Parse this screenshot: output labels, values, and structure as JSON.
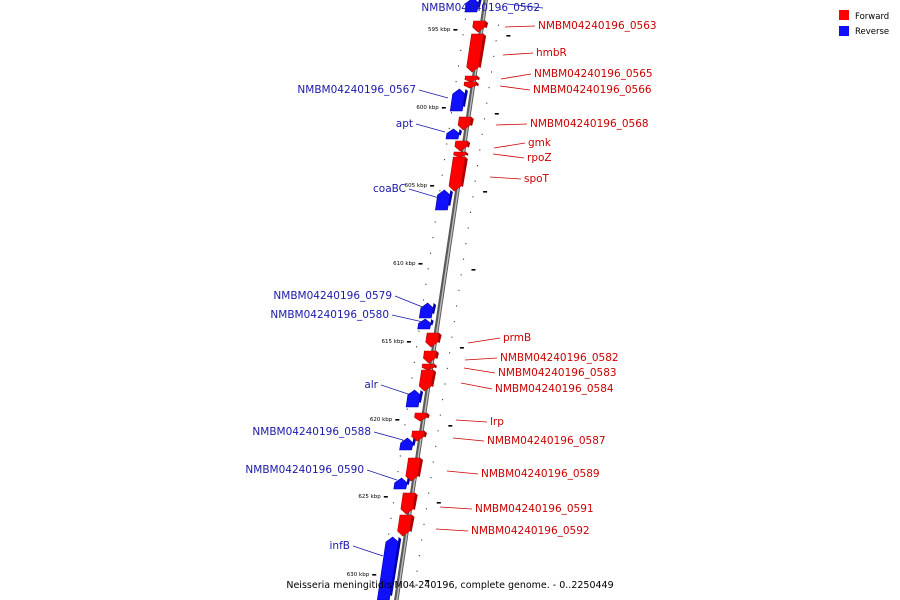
{
  "colors": {
    "forward": "#ff0000",
    "forward_dark": "#b00000",
    "reverse": "#1010ff",
    "reverse_dark": "#0000a8",
    "forward_label": "#cc0000",
    "reverse_label": "#1a1aaa",
    "backbone": "#8a8a8a"
  },
  "legend": {
    "forward": "Forward",
    "reverse": "Reverse"
  },
  "caption": "Neisseria meningitidis M04-240196, complete genome. - 0..2250449",
  "scale": {
    "ticks": [
      "595 kbp",
      "600 kbp",
      "605 kbp",
      "610 kbp",
      "615 kbp",
      "620 kbp",
      "625 kbp",
      "630 kbp"
    ]
  },
  "genes": [
    {
      "label": "NMBM04240196_0562",
      "strand": "reverse"
    },
    {
      "label": "NMBM04240196_0563",
      "strand": "forward"
    },
    {
      "label": "hmbR",
      "strand": "forward"
    },
    {
      "label": "NMBM04240196_0565",
      "strand": "forward"
    },
    {
      "label": "NMBM04240196_0566",
      "strand": "forward"
    },
    {
      "label": "NMBM04240196_0567",
      "strand": "reverse"
    },
    {
      "label": "apt",
      "strand": "reverse"
    },
    {
      "label": "NMBM04240196_0568",
      "strand": "forward"
    },
    {
      "label": "gmk",
      "strand": "forward"
    },
    {
      "label": "rpoZ",
      "strand": "forward"
    },
    {
      "label": "spoT",
      "strand": "forward"
    },
    {
      "label": "coaBC",
      "strand": "reverse"
    },
    {
      "label": "NMBM04240196_0579",
      "strand": "reverse"
    },
    {
      "label": "NMBM04240196_0580",
      "strand": "reverse"
    },
    {
      "label": "prmB",
      "strand": "forward"
    },
    {
      "label": "NMBM04240196_0582",
      "strand": "forward"
    },
    {
      "label": "NMBM04240196_0583",
      "strand": "forward"
    },
    {
      "label": "NMBM04240196_0584",
      "strand": "forward"
    },
    {
      "label": "alr",
      "strand": "reverse"
    },
    {
      "label": "lrp",
      "strand": "forward"
    },
    {
      "label": "NMBM04240196_0588",
      "strand": "reverse"
    },
    {
      "label": "NMBM04240196_0587",
      "strand": "forward"
    },
    {
      "label": "NMBM04240196_0589",
      "strand": "forward"
    },
    {
      "label": "NMBM04240196_0590",
      "strand": "reverse"
    },
    {
      "label": "NMBM04240196_0591",
      "strand": "forward"
    },
    {
      "label": "NMBM04240196_0592",
      "strand": "forward"
    },
    {
      "label": "infB",
      "strand": "reverse"
    }
  ]
}
